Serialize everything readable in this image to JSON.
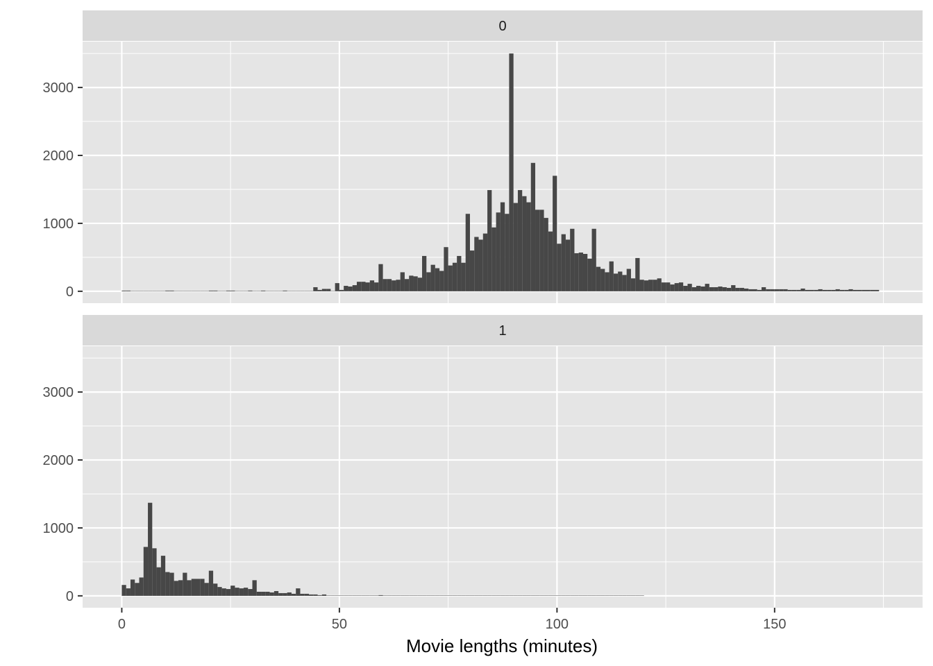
{
  "chart_data": {
    "type": "bar",
    "subtype": "histogram-faceted",
    "title": "",
    "xlabel": "Movie lengths (minutes)",
    "ylabel": "",
    "bin_width": 1,
    "xlim": [
      -9,
      184
    ],
    "ylim": [
      -175,
      3675
    ],
    "x_ticks": [
      0,
      50,
      100,
      150
    ],
    "y_ticks": [
      0,
      1000,
      2000,
      3000
    ],
    "grid": true,
    "colors": {
      "bar": "#474747",
      "panel_bg": "#e5e5e5",
      "strip_bg": "#d9d9d9",
      "grid": "#ffffff"
    },
    "facets": [
      {
        "label": "0",
        "x_start": 0,
        "values": [
          10,
          10,
          5,
          5,
          5,
          5,
          5,
          5,
          5,
          5,
          10,
          10,
          5,
          5,
          5,
          5,
          5,
          5,
          5,
          5,
          10,
          10,
          5,
          5,
          10,
          10,
          5,
          5,
          5,
          10,
          5,
          5,
          10,
          5,
          5,
          5,
          5,
          10,
          5,
          5,
          5,
          5,
          5,
          5,
          60,
          20,
          35,
          35,
          5,
          120,
          20,
          80,
          70,
          90,
          140,
          140,
          130,
          160,
          130,
          400,
          180,
          180,
          160,
          170,
          280,
          180,
          230,
          220,
          200,
          520,
          280,
          390,
          340,
          300,
          650,
          380,
          420,
          520,
          420,
          1140,
          600,
          800,
          760,
          850,
          1490,
          940,
          1160,
          1310,
          1140,
          3500,
          1300,
          1490,
          1400,
          1310,
          1890,
          1200,
          1200,
          1080,
          880,
          1700,
          700,
          840,
          760,
          920,
          560,
          570,
          550,
          480,
          920,
          360,
          330,
          280,
          440,
          260,
          290,
          240,
          330,
          190,
          490,
          170,
          160,
          170,
          170,
          190,
          130,
          130,
          100,
          120,
          130,
          80,
          110,
          60,
          80,
          70,
          110,
          60,
          60,
          70,
          60,
          50,
          90,
          50,
          50,
          40,
          30,
          30,
          20,
          60,
          30,
          30,
          30,
          30,
          30,
          20,
          20,
          20,
          40,
          20,
          20,
          20,
          30,
          20,
          20,
          20,
          30,
          20,
          20,
          30,
          20,
          20,
          20,
          20,
          20,
          20
        ]
      },
      {
        "label": "1",
        "x_start": 0,
        "values": [
          160,
          110,
          240,
          190,
          270,
          720,
          1370,
          700,
          420,
          590,
          350,
          340,
          220,
          230,
          340,
          230,
          250,
          250,
          250,
          190,
          370,
          180,
          130,
          110,
          100,
          150,
          120,
          110,
          120,
          100,
          230,
          60,
          60,
          60,
          50,
          70,
          40,
          40,
          50,
          30,
          110,
          30,
          30,
          20,
          20,
          10,
          20,
          5,
          5,
          5,
          5,
          5,
          5,
          5,
          5,
          5,
          5,
          5,
          5,
          10,
          5,
          5,
          5,
          5,
          5,
          5,
          5,
          5,
          5,
          5,
          5,
          5,
          5,
          5,
          5,
          5,
          5,
          5,
          5,
          5,
          5,
          5,
          5,
          5,
          5,
          5,
          5,
          5,
          5,
          5,
          5,
          5,
          5,
          5,
          5,
          5,
          5,
          5,
          5,
          5,
          5,
          5,
          5,
          5,
          5,
          5,
          5,
          5,
          5,
          5,
          5,
          5,
          5,
          5,
          5,
          5,
          5,
          5,
          5,
          5
        ]
      }
    ]
  }
}
